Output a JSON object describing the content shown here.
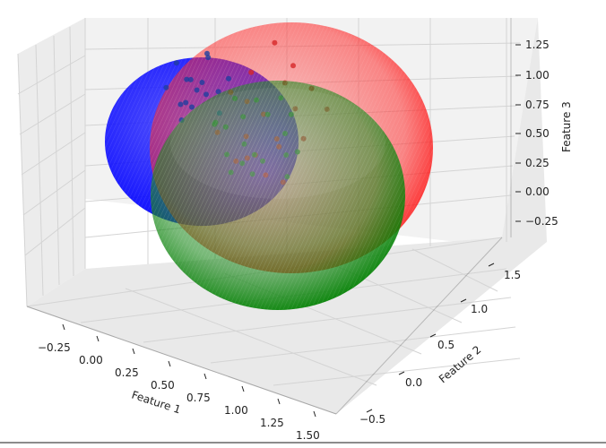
{
  "chart_data": {
    "type": "scatter",
    "title": "",
    "xlabel": "Feature 1",
    "ylabel": "Feature 2",
    "zlabel": "Feature 3",
    "x_ticks": [
      "−0.25",
      "0.00",
      "0.25",
      "0.50",
      "0.75",
      "1.00",
      "1.25",
      "1.50"
    ],
    "y_ticks": [
      "−0.5",
      "0.0",
      "0.5",
      "1.0",
      "1.5"
    ],
    "z_ticks": [
      "−0.25",
      "0.00",
      "0.25",
      "0.50",
      "0.75",
      "1.00",
      "1.25"
    ],
    "xlim": [
      -0.4,
      1.55
    ],
    "ylim": [
      -0.6,
      1.6
    ],
    "zlim": [
      -0.45,
      1.4
    ],
    "grid": true,
    "spheres": [
      {
        "color": "#0000ff",
        "center": [
          0.1,
          0.6,
          0.55
        ],
        "radius": 0.55
      },
      {
        "color": "#ff0000",
        "center": [
          0.55,
          0.7,
          0.55
        ],
        "radius": 0.9
      },
      {
        "color": "#008000",
        "center": [
          0.6,
          0.3,
          0.3
        ],
        "radius": 0.75
      }
    ],
    "series": [
      {
        "color": "#d62728",
        "points": [
          [
            0.55,
            0.8,
            0.95
          ],
          [
            0.7,
            0.75,
            0.85
          ],
          [
            0.45,
            0.65,
            0.75
          ],
          [
            0.8,
            0.55,
            0.65
          ],
          [
            0.6,
            0.5,
            0.55
          ],
          [
            0.4,
            0.7,
            0.45
          ],
          [
            0.75,
            0.4,
            0.4
          ],
          [
            0.5,
            0.45,
            0.35
          ],
          [
            0.65,
            0.6,
            0.3
          ],
          [
            0.9,
            0.45,
            0.5
          ],
          [
            0.35,
            0.55,
            0.6
          ],
          [
            0.85,
            0.7,
            0.75
          ],
          [
            0.55,
            0.35,
            0.25
          ],
          [
            0.7,
            0.3,
            0.2
          ],
          [
            0.45,
            0.4,
            0.15
          ],
          [
            1.0,
            0.6,
            0.7
          ],
          [
            0.6,
            0.85,
            0.6
          ],
          [
            0.3,
            0.45,
            0.3
          ],
          [
            0.8,
            0.35,
            0.15
          ],
          [
            0.5,
            0.6,
            0.1
          ]
        ]
      },
      {
        "color": "#2e7d32",
        "points": [
          [
            0.5,
            0.4,
            0.55
          ],
          [
            0.65,
            0.45,
            0.6
          ],
          [
            0.4,
            0.35,
            0.45
          ],
          [
            0.75,
            0.5,
            0.45
          ],
          [
            0.55,
            0.3,
            0.4
          ],
          [
            0.7,
            0.25,
            0.35
          ],
          [
            0.45,
            0.25,
            0.3
          ],
          [
            0.6,
            0.35,
            0.3
          ],
          [
            0.8,
            0.4,
            0.35
          ],
          [
            0.35,
            0.3,
            0.5
          ],
          [
            0.55,
            0.5,
            0.65
          ],
          [
            0.7,
            0.55,
            0.7
          ],
          [
            0.85,
            0.3,
            0.25
          ],
          [
            0.5,
            0.2,
            0.2
          ],
          [
            0.65,
            0.2,
            0.25
          ],
          [
            0.4,
            0.5,
            0.6
          ],
          [
            0.75,
            0.6,
            0.55
          ],
          [
            0.6,
            0.15,
            0.35
          ],
          [
            0.9,
            0.35,
            0.45
          ],
          [
            0.3,
            0.4,
            0.4
          ]
        ]
      },
      {
        "color": "#1f3f9f",
        "points": [
          [
            0.05,
            0.6,
            0.55
          ],
          [
            0.15,
            0.55,
            0.6
          ],
          [
            0.0,
            0.65,
            0.5
          ],
          [
            0.2,
            0.7,
            0.45
          ],
          [
            0.1,
            0.5,
            0.4
          ],
          [
            -0.05,
            0.6,
            0.65
          ],
          [
            0.25,
            0.6,
            0.35
          ],
          [
            0.1,
            0.75,
            0.7
          ],
          [
            0.05,
            0.45,
            0.3
          ],
          [
            0.2,
            0.5,
            0.55
          ],
          [
            0.0,
            0.55,
            0.35
          ],
          [
            0.15,
            0.65,
            0.75
          ],
          [
            -0.1,
            0.55,
            0.45
          ],
          [
            0.25,
            0.75,
            0.55
          ],
          [
            0.1,
            0.4,
            0.5
          ],
          [
            0.05,
            0.7,
            0.4
          ]
        ]
      }
    ]
  }
}
